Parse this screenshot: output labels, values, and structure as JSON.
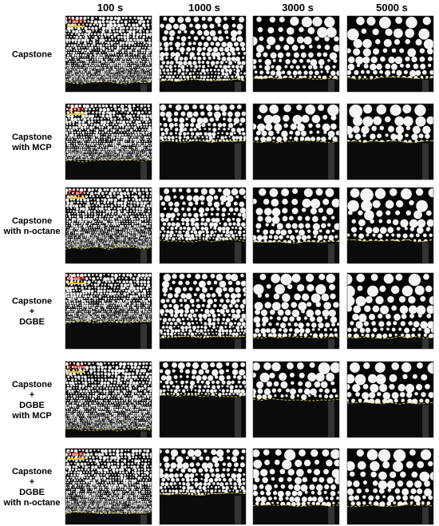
{
  "column_headers": [
    "100 s",
    "1000 s",
    "3000 s",
    "5000 s"
  ],
  "rows": [
    {
      "label": [
        "Capstone"
      ],
      "scale_bar": "2 mm"
    },
    {
      "label": [
        "Capstone",
        "with MCP"
      ],
      "scale_bar": "2 mm"
    },
    {
      "label": [
        "Capstone",
        "with n-octane"
      ],
      "scale_bar": "2 mm"
    },
    {
      "label": [
        "Capstone",
        "+",
        "DGBE"
      ],
      "scale_bar": "2 mm"
    },
    {
      "label": [
        "Capstone",
        "+",
        "DGBE",
        "with MCP"
      ],
      "scale_bar": "2 mm"
    },
    {
      "label": [
        "Capstone",
        "+",
        "DGBE",
        "with n-octane"
      ],
      "scale_bar": "2 mm"
    }
  ]
}
